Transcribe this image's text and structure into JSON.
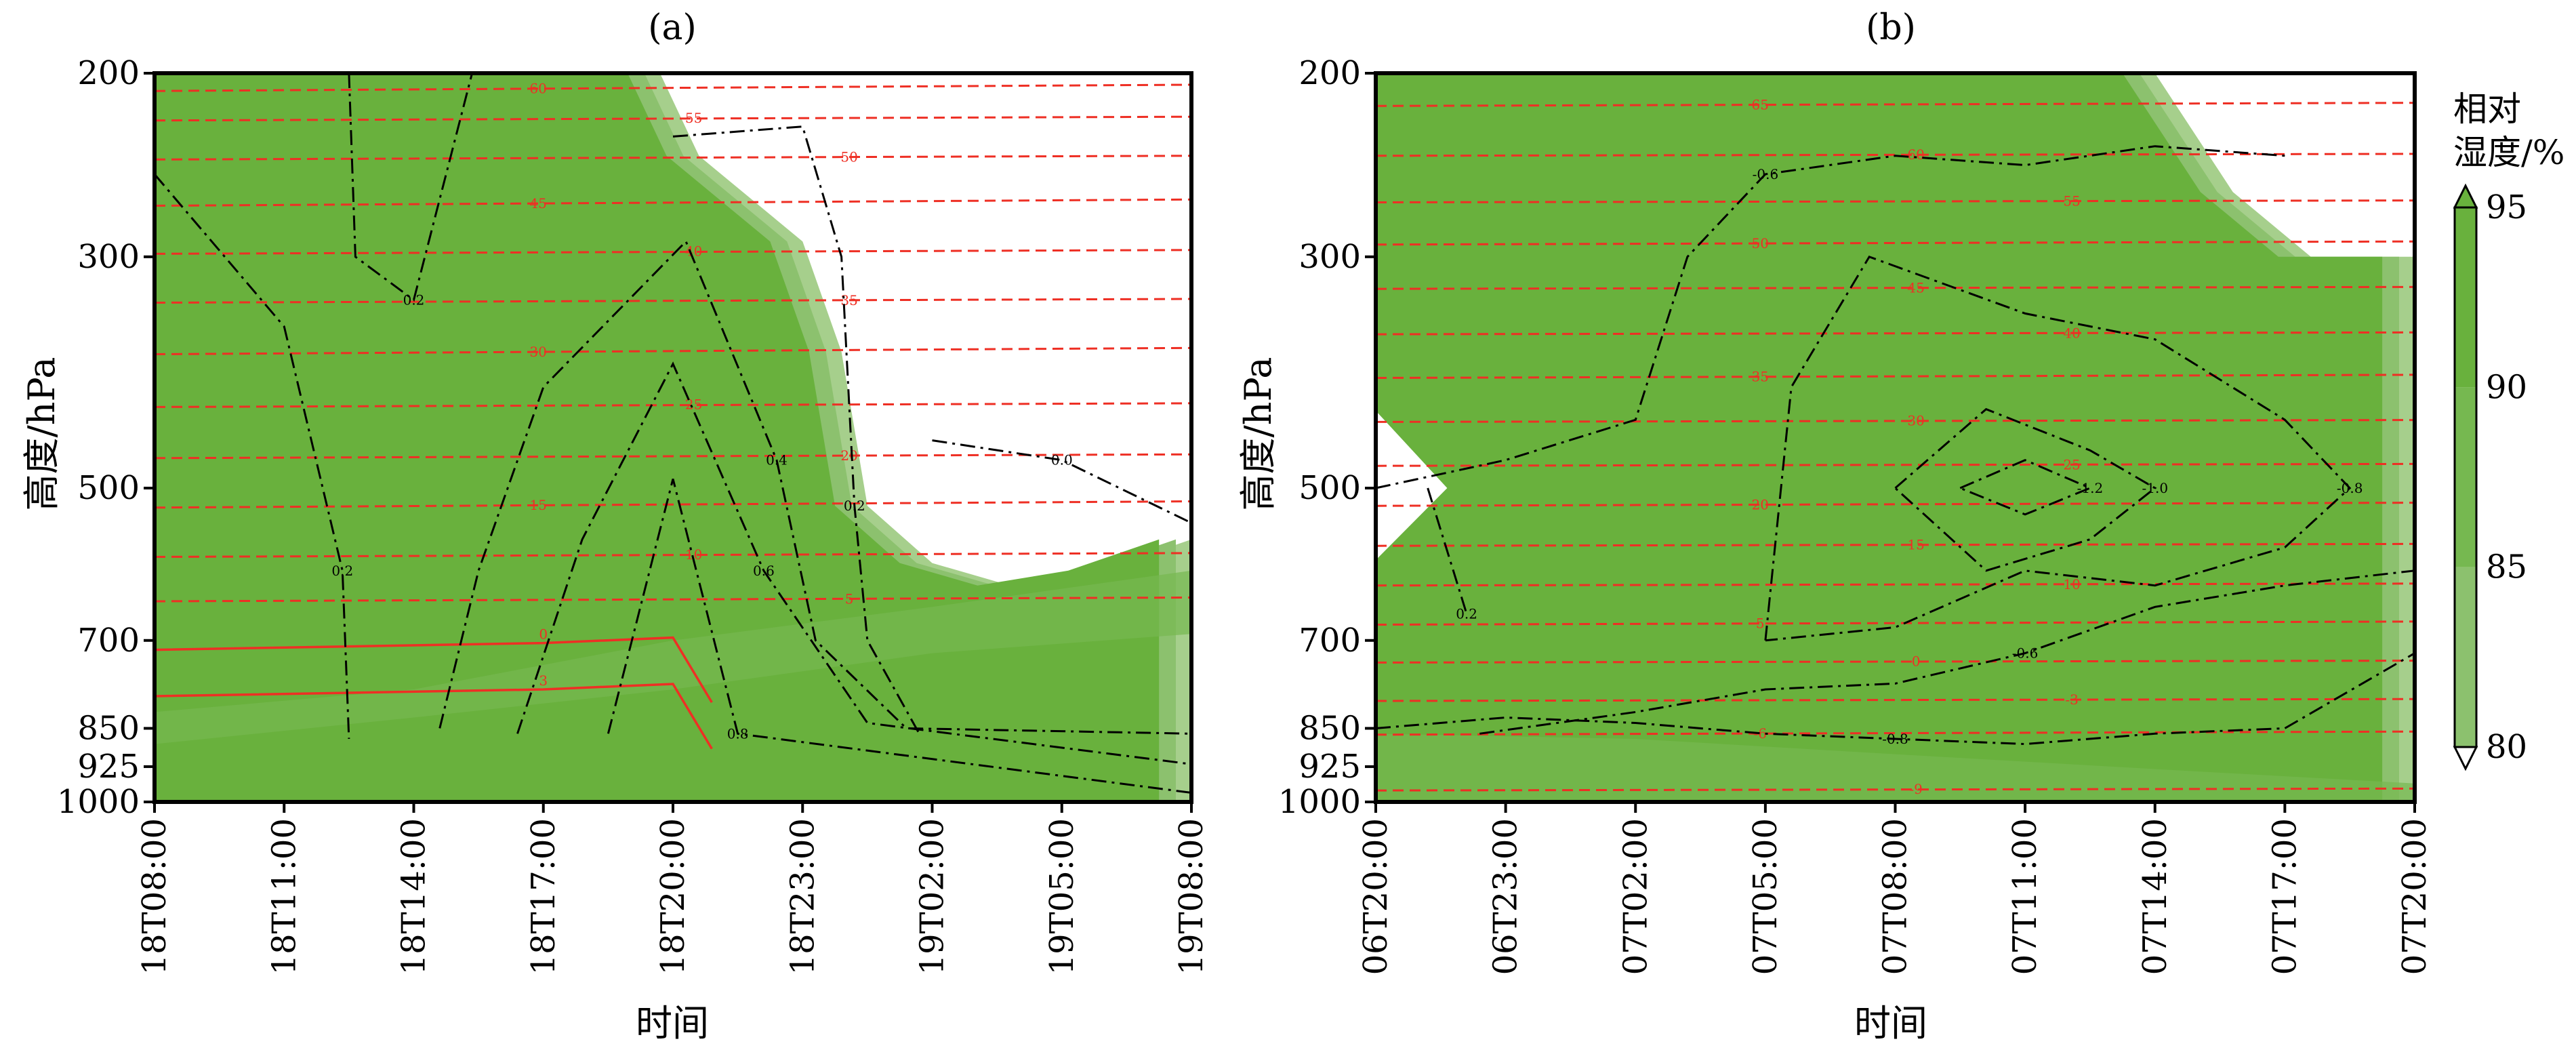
{
  "chart_data": [
    {
      "type": "heatmap",
      "title": "(a)",
      "xlabel": "时间",
      "ylabel": "高度/hPa",
      "x_ticks": [
        "18T08:00",
        "18T11:00",
        "18T14:00",
        "18T17:00",
        "18T20:00",
        "18T23:00",
        "19T02:00",
        "19T05:00",
        "19T08:00"
      ],
      "y_ticks": [
        200,
        300,
        500,
        700,
        850,
        925,
        1000
      ],
      "y_scale": "log",
      "y_range": [
        1000,
        200
      ],
      "grid": false,
      "shading": {
        "variable": "相对湿度/%",
        "levels": [
          80,
          85,
          90,
          95
        ],
        "region_outline": [
          [
            0,
            200
          ],
          [
            3.9,
            200
          ],
          [
            4.2,
            240
          ],
          [
            5.0,
            290
          ],
          [
            5.3,
            370
          ],
          [
            5.5,
            520
          ],
          [
            6.0,
            590
          ],
          [
            6.6,
            620
          ],
          [
            7.3,
            600
          ],
          [
            8,
            560
          ],
          [
            8,
            1000
          ],
          [
            0,
            1000
          ]
        ]
      },
      "red_dashed_contours": [
        {
          "label": "60",
          "pressure": 208
        },
        {
          "label": "55",
          "pressure": 222
        },
        {
          "label": "50",
          "pressure": 242
        },
        {
          "label": "45",
          "pressure": 268
        },
        {
          "label": "40",
          "pressure": 298
        },
        {
          "label": "35",
          "pressure": 332
        },
        {
          "label": "30",
          "pressure": 372
        },
        {
          "label": "25",
          "pressure": 418
        },
        {
          "label": "20",
          "pressure": 468
        },
        {
          "label": "15",
          "pressure": 522
        },
        {
          "label": "10",
          "pressure": 582
        },
        {
          "label": "5",
          "pressure": 642
        }
      ],
      "red_solid_contours": [
        {
          "label": "0",
          "pressure": 704
        },
        {
          "label": "3",
          "pressure": 780
        }
      ],
      "black_dashdot_contours": [
        {
          "label": "0.2",
          "path": [
            [
              0,
              250
            ],
            [
              1,
              350
            ],
            [
              1.45,
              600
            ],
            [
              1.5,
              870
            ]
          ]
        },
        {
          "label": "0.2",
          "path": [
            [
              1.5,
              200
            ],
            [
              1.55,
              300
            ],
            [
              2,
              330
            ],
            [
              2.45,
              200
            ]
          ]
        },
        {
          "label": "0.2",
          "path": [
            [
              4,
              230
            ],
            [
              5,
              225
            ],
            [
              5.3,
              300
            ],
            [
              5.4,
              520
            ],
            [
              5.5,
              700
            ],
            [
              5.9,
              860
            ]
          ]
        },
        {
          "label": "0.4",
          "path": [
            [
              2.2,
              850
            ],
            [
              2.5,
              600
            ],
            [
              3,
              400
            ],
            [
              4.1,
              290
            ],
            [
              4.8,
              470
            ],
            [
              5.1,
              700
            ],
            [
              5.8,
              850
            ],
            [
              8,
              860
            ]
          ]
        },
        {
          "label": "0.6",
          "path": [
            [
              2.8,
              860
            ],
            [
              3.3,
              560
            ],
            [
              4,
              380
            ],
            [
              4.7,
              600
            ],
            [
              5.5,
              840
            ],
            [
              8,
              920
            ]
          ]
        },
        {
          "label": "0.8",
          "path": [
            [
              3.5,
              860
            ],
            [
              4,
              490
            ],
            [
              4.5,
              860
            ],
            [
              8,
              980
            ]
          ]
        },
        {
          "label": "0.0",
          "path": [
            [
              6,
              450
            ],
            [
              7,
              470
            ],
            [
              8,
              540
            ]
          ]
        }
      ]
    },
    {
      "type": "heatmap",
      "title": "(b)",
      "xlabel": "时间",
      "ylabel": "高度/hPa",
      "x_ticks": [
        "06T20:00",
        "06T23:00",
        "07T02:00",
        "07T05:00",
        "07T08:00",
        "07T11:00",
        "07T14:00",
        "07T17:00",
        "07T20:00"
      ],
      "y_ticks": [
        200,
        300,
        500,
        700,
        850,
        925,
        1000
      ],
      "y_scale": "log",
      "y_range": [
        1000,
        200
      ],
      "grid": false,
      "shading": {
        "variable": "相对湿度/%",
        "levels": [
          80,
          85,
          90,
          95
        ],
        "region_outline": [
          [
            0,
            200
          ],
          [
            6,
            200
          ],
          [
            6.6,
            260
          ],
          [
            7.2,
            300
          ],
          [
            8,
            300
          ],
          [
            8,
            1000
          ],
          [
            0,
            1000
          ],
          [
            0,
            630
          ],
          [
            0.8,
            500
          ],
          [
            0,
            390
          ]
        ]
      },
      "red_dashed_contours": [
        {
          "label": "65",
          "pressure": 215
        },
        {
          "label": "60",
          "pressure": 240
        },
        {
          "label": "55",
          "pressure": 266
        },
        {
          "label": "50",
          "pressure": 292
        },
        {
          "label": "45",
          "pressure": 322
        },
        {
          "label": "40",
          "pressure": 356
        },
        {
          "label": "35",
          "pressure": 392
        },
        {
          "label": "30",
          "pressure": 432
        },
        {
          "label": "25",
          "pressure": 476
        },
        {
          "label": "20",
          "pressure": 520
        },
        {
          "label": "15",
          "pressure": 568
        },
        {
          "label": "10",
          "pressure": 620
        },
        {
          "label": "5",
          "pressure": 676
        },
        {
          "label": "0",
          "pressure": 735
        },
        {
          "label": "-3",
          "pressure": 800
        },
        {
          "label": "-6",
          "pressure": 862
        },
        {
          "label": "-9",
          "pressure": 975
        }
      ],
      "black_dashdot_contours": [
        {
          "label": "0.2",
          "path": [
            [
              0.4,
              500
            ],
            [
              0.7,
              660
            ]
          ]
        },
        {
          "label": "-0.6",
          "path": [
            [
              0.8,
              860
            ],
            [
              2,
              820
            ],
            [
              3,
              780
            ],
            [
              4,
              770
            ],
            [
              5,
              720
            ],
            [
              6,
              650
            ],
            [
              7,
              620
            ],
            [
              8,
              600
            ]
          ]
        },
        {
          "label": "-0.8",
          "path": [
            [
              0,
              850
            ],
            [
              1,
              830
            ],
            [
              2,
              840
            ],
            [
              3,
              860
            ],
            [
              4,
              870
            ],
            [
              5,
              880
            ],
            [
              6,
              860
            ],
            [
              7,
              850
            ],
            [
              8,
              720
            ]
          ]
        },
        {
          "label": "-0.6",
          "path": [
            [
              0,
              500
            ],
            [
              1,
              470
            ],
            [
              2,
              430
            ],
            [
              2.4,
              300
            ],
            [
              3,
              250
            ],
            [
              4,
              240
            ],
            [
              5,
              245
            ],
            [
              6,
              235
            ],
            [
              7,
              240
            ]
          ]
        },
        {
          "label": "-0.8",
          "path": [
            [
              3,
              700
            ],
            [
              3.2,
              400
            ],
            [
              3.8,
              300
            ],
            [
              5,
              340
            ],
            [
              6,
              360
            ],
            [
              7,
              430
            ],
            [
              7.5,
              500
            ],
            [
              7,
              570
            ],
            [
              6,
              620
            ],
            [
              5,
              600
            ],
            [
              4,
              680
            ],
            [
              3,
              700
            ]
          ]
        },
        {
          "label": "-1.0",
          "path": [
            [
              4,
              500
            ],
            [
              4.7,
              420
            ],
            [
              5.5,
              460
            ],
            [
              6,
              500
            ],
            [
              5.5,
              560
            ],
            [
              4.7,
              600
            ],
            [
              4,
              500
            ]
          ]
        },
        {
          "label": "-1.2",
          "path": [
            [
              4.5,
              500
            ],
            [
              5,
              470
            ],
            [
              5.5,
              500
            ],
            [
              5,
              530
            ],
            [
              4.5,
              500
            ]
          ]
        }
      ]
    }
  ],
  "colorbar": {
    "title_line1": "相对",
    "title_line2": "湿度/%",
    "tick_labels": [
      "80",
      "85",
      "90",
      "95"
    ],
    "colors": [
      "#a6cf8c",
      "#8cc16e",
      "#76b850",
      "#69b13d"
    ],
    "extend": "both"
  },
  "colors": {
    "rh_above_80": "#a6cf8c",
    "rh_above_85": "#8cc16e",
    "rh_above_90": "#76b850",
    "rh_above_95": "#69b13d",
    "temperature_contour": "#ee2f24",
    "vertical_velocity_contour": "#000000"
  }
}
